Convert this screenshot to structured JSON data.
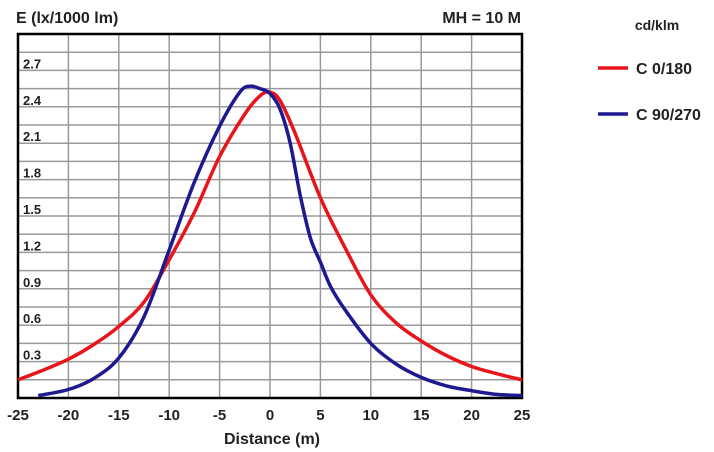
{
  "chart_data": {
    "type": "line",
    "title": "",
    "ylabel": "E (lx/1000 lm)",
    "xlabel": "Distance (m)",
    "annotation": "MH = 10 M",
    "legend_title": "cd/klm",
    "legend_position": "right",
    "xlim": [
      -25,
      25
    ],
    "ylim": [
      0,
      3.0
    ],
    "grid": true,
    "xticks": [
      -25,
      -20,
      -15,
      -10,
      -5,
      0,
      5,
      10,
      15,
      20,
      25
    ],
    "yticks": [
      0.3,
      0.6,
      0.9,
      1.2,
      1.5,
      1.8,
      2.1,
      2.4,
      2.7
    ],
    "xtick_labels": [
      "-25",
      "-20",
      "-15",
      "-10",
      "-5",
      "0",
      "5",
      "10",
      "15",
      "20",
      "25"
    ],
    "ytick_labels": [
      "0.3",
      "0.6",
      "0.9",
      "1.2",
      "1.5",
      "1.8",
      "2.1",
      "2.4",
      "2.7"
    ],
    "series": [
      {
        "name": "C 0/180",
        "color": "#e8141b",
        "x": [
          -25,
          -22.5,
          -20,
          -17.5,
          -15,
          -12.5,
          -10,
          -7.5,
          -5,
          -2.5,
          -1,
          0,
          1,
          2.5,
          5,
          7.5,
          10,
          12.5,
          15,
          17.5,
          20,
          22.5,
          25
        ],
        "y": [
          0.15,
          0.23,
          0.32,
          0.44,
          0.59,
          0.79,
          1.14,
          1.53,
          1.99,
          2.34,
          2.49,
          2.52,
          2.45,
          2.18,
          1.65,
          1.23,
          0.85,
          0.62,
          0.47,
          0.35,
          0.26,
          0.2,
          0.15
        ]
      },
      {
        "name": "C 90/270",
        "color": "#1f1990",
        "x": [
          -23,
          -20,
          -17.5,
          -15,
          -12.5,
          -10,
          -7.5,
          -5,
          -3,
          -2,
          -1,
          0,
          1,
          2,
          3,
          4,
          5,
          6,
          7.5,
          10,
          12.5,
          15,
          17.5,
          20,
          22.5,
          25
        ],
        "y": [
          0.02,
          0.07,
          0.16,
          0.33,
          0.67,
          1.22,
          1.78,
          2.24,
          2.52,
          2.57,
          2.55,
          2.51,
          2.38,
          2.1,
          1.67,
          1.32,
          1.12,
          0.92,
          0.72,
          0.45,
          0.28,
          0.17,
          0.1,
          0.06,
          0.03,
          0.02
        ]
      }
    ]
  }
}
